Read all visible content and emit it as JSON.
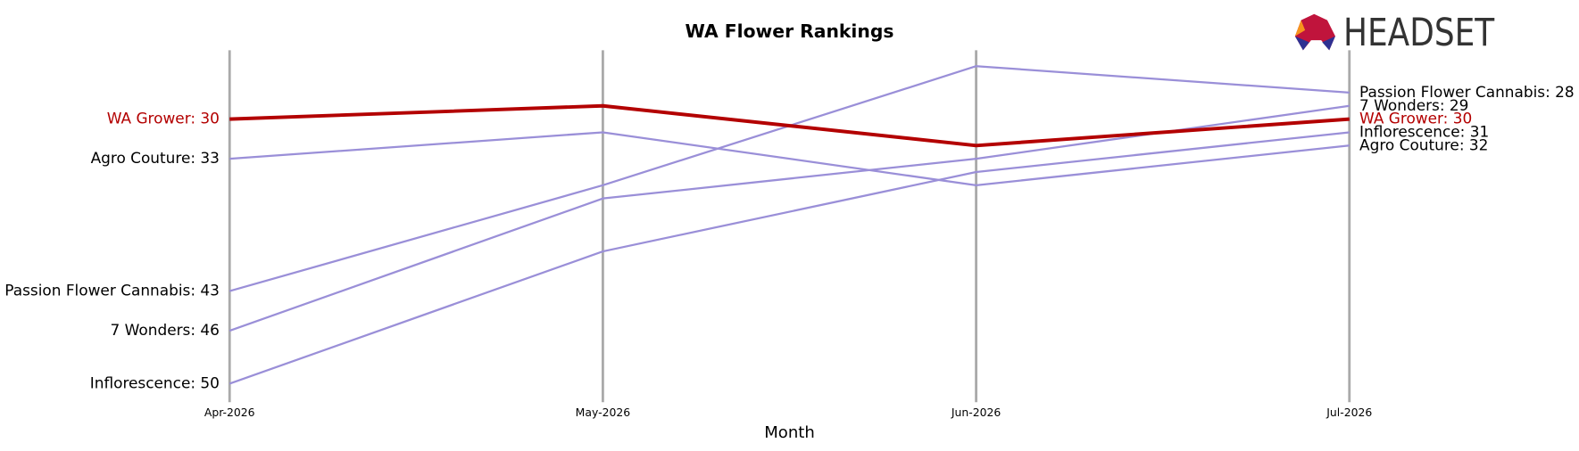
{
  "chart_data": {
    "type": "bump",
    "title": "WA Flower Rankings",
    "x_label": "Month",
    "logo": "HEADSET",
    "categories": [
      "Apr-2026",
      "May-2026",
      "Jun-2026",
      "Jul-2026"
    ],
    "ylim": [
      24.8,
      51.4
    ],
    "y_inverted": true,
    "series": [
      {
        "name": "Agro Couture",
        "color": "#9a8fd8",
        "values": [
          33,
          31,
          35,
          32
        ],
        "start_label": "Agro Couture: 33",
        "end_label": "Agro Couture: 32",
        "label_color": "#000000"
      },
      {
        "name": "Passion Flower Cannabis",
        "color": "#9a8fd8",
        "values": [
          43,
          35,
          26,
          28
        ],
        "start_label": "Passion Flower Cannabis: 43",
        "end_label": "Passion Flower Cannabis: 28",
        "label_color": "#000000"
      },
      {
        "name": "7 Wonders",
        "color": "#9a8fd8",
        "values": [
          46,
          36,
          33,
          29
        ],
        "start_label": "7 Wonders: 46",
        "end_label": "7 Wonders: 29",
        "label_color": "#000000"
      },
      {
        "name": "Inflorescence",
        "color": "#9a8fd8",
        "values": [
          50,
          40,
          34,
          31
        ],
        "start_label": "Inflorescence: 50",
        "end_label": "Inflorescence: 31",
        "label_color": "#000000"
      },
      {
        "name": "WA Grower",
        "color": "#b30000",
        "values": [
          30,
          29,
          32,
          30
        ],
        "start_label": "WA Grower: 30",
        "end_label": "WA Grower: 30",
        "label_color": "#b30000",
        "highlight": true
      }
    ]
  }
}
